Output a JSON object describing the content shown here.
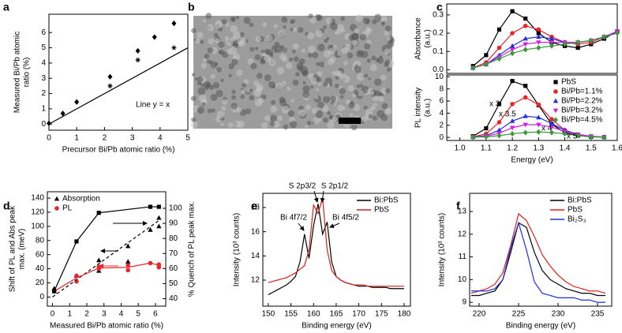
{
  "chart_data": [
    {
      "label": "a",
      "type": "scatter",
      "xlabel": "Precursor Bi/Pb atomic ratio (%)",
      "ylabel": [
        "Measured Bi/Pb atomic",
        "ratio (%)"
      ],
      "xlim": [
        0,
        5
      ],
      "ylim": [
        -0.4,
        7.2
      ],
      "xticks": [
        0,
        1,
        2,
        3,
        4,
        5
      ],
      "yticks": [
        0,
        1,
        2,
        3,
        4,
        5,
        6
      ],
      "series": [
        {
          "marker": "diamond",
          "color": "#000000",
          "line": false,
          "x": [
            0,
            0.5,
            1,
            2.2,
            3.2,
            3.8,
            4.5
          ],
          "values": [
            0.05,
            0.7,
            1.45,
            3.1,
            4.8,
            5.7,
            6.6
          ]
        },
        {
          "marker": "star",
          "color": "#000000",
          "line": false,
          "x": [
            2.2,
            3.2,
            4.5
          ],
          "values": [
            2.5,
            4.2,
            5.0
          ]
        },
        {
          "marker": "none",
          "color": "#000000",
          "line": true,
          "x": [
            0,
            5
          ],
          "values": [
            0,
            5
          ]
        }
      ],
      "annotations": [
        {
          "text": "Line y = x"
        }
      ]
    },
    {
      "label": "b",
      "type": "image"
    },
    {
      "label": "c",
      "type": "line",
      "ylabel": [
        "Absorbance",
        "(a.u.)"
      ],
      "xlim": [
        0.95,
        1.6
      ],
      "ylim": [
        -0.02,
        0.36
      ],
      "yticks": [
        {
          "value": 0,
          "label": "0.0"
        },
        0.1,
        0.2,
        0.3
      ],
      "series": [
        {
          "marker": "square",
          "color": "#000000",
          "line": true,
          "x": [
            1.05,
            1.1,
            1.15,
            1.2,
            1.25,
            1.3,
            1.35,
            1.4,
            1.45,
            1.5,
            1.55,
            1.6
          ],
          "values": [
            0.02,
            0.08,
            0.22,
            0.32,
            0.28,
            0.2,
            0.15,
            0.13,
            0.12,
            0.14,
            0.17,
            0.21
          ]
        },
        {
          "marker": "circle",
          "color": "#e8262a",
          "line": true,
          "x": [
            1.05,
            1.1,
            1.15,
            1.2,
            1.25,
            1.3,
            1.35,
            1.4,
            1.45,
            1.5,
            1.55,
            1.6
          ],
          "values": [
            0.01,
            0.04,
            0.12,
            0.2,
            0.24,
            0.22,
            0.18,
            0.15,
            0.14,
            0.15,
            0.18,
            0.21
          ]
        },
        {
          "marker": "triangle",
          "color": "#2030e0",
          "line": true,
          "x": [
            1.05,
            1.1,
            1.15,
            1.2,
            1.25,
            1.3,
            1.35,
            1.4,
            1.45,
            1.5,
            1.55,
            1.6
          ],
          "values": [
            0.01,
            0.03,
            0.08,
            0.13,
            0.17,
            0.18,
            0.17,
            0.15,
            0.15,
            0.16,
            0.18,
            0.21
          ]
        },
        {
          "marker": "triangle-down",
          "color": "#d020e0",
          "line": true,
          "x": [
            1.05,
            1.1,
            1.15,
            1.2,
            1.25,
            1.3,
            1.35,
            1.4,
            1.45,
            1.5,
            1.55,
            1.6
          ],
          "values": [
            0.01,
            0.03,
            0.07,
            0.11,
            0.14,
            0.15,
            0.15,
            0.15,
            0.15,
            0.16,
            0.18,
            0.21
          ]
        },
        {
          "marker": "diamond",
          "color": "#3a9a3a",
          "line": true,
          "x": [
            1.05,
            1.1,
            1.15,
            1.2,
            1.25,
            1.3,
            1.35,
            1.4,
            1.45,
            1.5,
            1.55,
            1.6
          ],
          "values": [
            0.01,
            0.03,
            0.06,
            0.09,
            0.11,
            0.12,
            0.13,
            0.14,
            0.15,
            0.16,
            0.18,
            0.2
          ]
        }
      ]
    },
    {
      "type": "line",
      "xlabel": "Energy (eV)",
      "ylabel": [
        "PL intensity",
        "(a.u.)"
      ],
      "xlim": [
        0.95,
        1.6
      ],
      "ylim": [
        -0.5,
        10.3
      ],
      "xticks": [
        {
          "value": 1,
          "label": "1.0"
        },
        1.1,
        1.2,
        1.3,
        1.4,
        1.5,
        1.6
      ],
      "yticks": [
        0,
        2,
        4,
        6,
        8,
        10
      ],
      "legend": "upper right",
      "series": [
        {
          "name": "PbS",
          "marker": "square",
          "color": "#000000",
          "line": true,
          "x": [
            1.05,
            1.1,
            1.15,
            1.2,
            1.25,
            1.3,
            1.35,
            1.4,
            1.45,
            1.5,
            1.55
          ],
          "values": [
            0.2,
            1.5,
            5.5,
            9.3,
            8.5,
            5.3,
            2.2,
            0.8,
            0.3,
            0.1,
            0.05
          ]
        },
        {
          "name": "Bi/Pb=1.1%",
          "marker": "circle",
          "color": "#e8262a",
          "line": true,
          "x": [
            1.05,
            1.1,
            1.15,
            1.2,
            1.25,
            1.3,
            1.35,
            1.4,
            1.45,
            1.5,
            1.55
          ],
          "values": [
            0.1,
            0.6,
            2.5,
            5.5,
            6.6,
            5.4,
            3,
            1.2,
            0.4,
            0.15,
            0.05
          ]
        },
        {
          "name": "Bi/Pb=2.2%",
          "marker": "triangle",
          "color": "#2030e0",
          "line": true,
          "x": [
            1.05,
            1.1,
            1.15,
            1.2,
            1.25,
            1.3,
            1.35,
            1.4,
            1.45,
            1.5,
            1.55
          ],
          "values": [
            0.05,
            0.3,
            1.2,
            2.7,
            3.5,
            3.3,
            2.3,
            1.2,
            0.5,
            0.2,
            0.05
          ]
        },
        {
          "name": "Bi/Pb=3.2%",
          "marker": "triangle-down",
          "color": "#d020e0",
          "line": true,
          "x": [
            1.05,
            1.1,
            1.15,
            1.2,
            1.25,
            1.3,
            1.35,
            1.4,
            1.45,
            1.5,
            1.55
          ],
          "values": [
            0.05,
            0.2,
            0.7,
            1.6,
            2.1,
            2.1,
            1.7,
            1,
            0.5,
            0.2,
            0.05
          ]
        },
        {
          "name": "Bi/Pb=4.5%",
          "marker": "diamond",
          "color": "#3a9a3a",
          "line": true,
          "x": [
            1.05,
            1.1,
            1.15,
            1.2,
            1.25,
            1.3,
            1.35,
            1.4,
            1.45,
            1.5,
            1.55
          ],
          "values": [
            0.02,
            0.1,
            0.3,
            0.6,
            0.8,
            0.9,
            0.8,
            0.6,
            0.3,
            0.1,
            0.05
          ]
        }
      ],
      "annotations": [
        {
          "text": "x 3",
          "color": "#e8262a"
        },
        {
          "text": "x 3.5",
          "color": "#2030e0"
        },
        {
          "text": "x 4",
          "color": "#d020e0"
        },
        {
          "text": "x 5",
          "color": "#3a9a3a"
        }
      ]
    },
    {
      "label": "d",
      "type": "scatter",
      "xlabel": "Measured Bi/Pb atomic ratio (%)",
      "ylabel": [
        "Shift of PL and Abs peak",
        "max. (meV)"
      ],
      "y2label": "% Quench of PL peak max.",
      "xlim": [
        -0.3,
        6.6
      ],
      "ylim": [
        -13,
        149
      ],
      "y2lim": [
        35,
        111
      ],
      "xticks": [
        0,
        1,
        2,
        3,
        4,
        5,
        6
      ],
      "yticks": [
        0,
        20,
        40,
        60,
        80,
        100,
        120,
        140
      ],
      "y2ticks": [
        40,
        50,
        60,
        70,
        80,
        90,
        100
      ],
      "legend": "upper left",
      "series": [
        {
          "name": "Absorption",
          "marker": "triangle",
          "color": "#000000",
          "line": false,
          "x": [
            0.1,
            0.1,
            1.4,
            2.7,
            2.7,
            4.4,
            4.4,
            5.7,
            6.2,
            6.2
          ],
          "values": [
            12,
            8,
            30,
            52,
            37,
            72,
            50,
            95,
            112,
            100
          ]
        },
        {
          "name": "PL",
          "marker": "circle",
          "color": "#e8262a",
          "line": false,
          "x": [
            0.1,
            1.4,
            1.4,
            2.7,
            2.7,
            4.4,
            4.4,
            5.7,
            6.2,
            6.2
          ],
          "values": [
            8,
            30,
            22,
            43,
            40,
            45,
            38,
            48,
            46,
            42
          ]
        },
        {
          "marker": "none",
          "color": "#000000",
          "line": true,
          "dash": true,
          "x": [
            0,
            6.3
          ],
          "values": [
            0,
            110
          ]
        },
        {
          "marker": "none",
          "color": "#e8262a",
          "line": true,
          "x": [
            0.1,
            1.4,
            2.7,
            4.4,
            5.7,
            6.2
          ],
          "values": [
            8,
            27,
            41,
            42,
            48,
            45
          ]
        },
        {
          "marker": "square",
          "color": "#000000",
          "line": true,
          "axis": "y2",
          "x": [
            0.1,
            1.4,
            2.7,
            5.7,
            6.2
          ],
          "values": [
            45,
            78,
            97,
            101,
            101
          ]
        }
      ]
    },
    {
      "label": "e",
      "type": "line",
      "xlabel": "Binding energy (eV)",
      "ylabel": "Intensity (10³ counts)",
      "xlim": [
        148.8,
        181.4
      ],
      "ylim": [
        9.85,
        19.17
      ],
      "xticks": [
        150,
        155,
        160,
        165,
        170,
        175,
        180
      ],
      "yticks": [
        12,
        14,
        16,
        18
      ],
      "legend": "upper right",
      "series": [
        {
          "name": "Bi:PbS",
          "marker": "none",
          "color": "#000000",
          "line": true,
          "x": [
            150,
            151,
            152,
            153,
            154,
            155,
            156,
            157,
            158,
            159,
            160,
            161,
            162,
            163,
            164,
            165,
            166,
            167,
            168,
            169,
            170,
            171,
            172,
            173,
            174,
            175,
            176,
            177,
            178,
            179,
            180
          ],
          "values": [
            10.8,
            11.0,
            11.2,
            11.4,
            11.6,
            11.9,
            12.3,
            13.5,
            15.8,
            13.8,
            16.5,
            18.3,
            15.8,
            16.8,
            13.5,
            12.3,
            12.0,
            11.8,
            11.7,
            11.6,
            11.5,
            11.5,
            11.5,
            11.4,
            11.4,
            11.4,
            11.4,
            11.3,
            11.3,
            11.3,
            11.3
          ]
        },
        {
          "name": "PbS",
          "marker": "none",
          "color": "#d42020",
          "line": true,
          "x": [
            150,
            151,
            152,
            153,
            154,
            155,
            156,
            157,
            158,
            159,
            160,
            161,
            162,
            163,
            164,
            165,
            166,
            167,
            168,
            169,
            170,
            171,
            172,
            173,
            174,
            175,
            176,
            177,
            178,
            179,
            180
          ],
          "values": [
            11.8,
            11.9,
            12.0,
            12.1,
            12.2,
            12.4,
            12.6,
            12.9,
            13.2,
            14.5,
            18.2,
            17.5,
            18.8,
            14.5,
            12.8,
            12.3,
            12.0,
            11.8,
            11.7,
            11.6,
            11.6,
            11.6,
            11.5,
            11.5,
            11.5,
            11.5,
            11.5,
            11.5,
            11.5,
            11.5,
            11.5
          ]
        }
      ],
      "annotations": [
        {
          "text": "S 2p3/2"
        },
        {
          "text": "S 2p1/2"
        },
        {
          "text": "Bi 4f7/2"
        },
        {
          "text": "Bi 4f5/2"
        }
      ]
    },
    {
      "label": "f",
      "type": "line",
      "xlabel": "Binding energy (eV)",
      "ylabel": "Intensity (10³ counts)",
      "xlim": [
        218.8,
        236.8
      ],
      "ylim": [
        8.83,
        13.8
      ],
      "xticks": [
        220,
        225,
        230,
        235
      ],
      "yticks": [
        9,
        10,
        11,
        12,
        13
      ],
      "legend": "upper right",
      "series": [
        {
          "name": "Bi:PbS",
          "marker": "none",
          "color": "#000000",
          "line": true,
          "x": [
            219,
            220,
            221,
            222,
            223,
            224,
            225,
            226,
            227,
            228,
            229,
            230,
            231,
            232,
            233,
            234,
            235,
            236
          ],
          "values": [
            9.3,
            9.3,
            9.4,
            9.5,
            10.0,
            11.2,
            12.5,
            12.3,
            11.2,
            10.4,
            10.0,
            9.8,
            9.6,
            9.5,
            9.4,
            9.4,
            9.3,
            9.3
          ]
        },
        {
          "name": "PbS",
          "marker": "none",
          "color": "#e02020",
          "line": true,
          "x": [
            219,
            220,
            221,
            222,
            223,
            224,
            225,
            226,
            227,
            228,
            229,
            230,
            231,
            232,
            233,
            234,
            235,
            236
          ],
          "values": [
            9.4,
            9.5,
            9.6,
            9.8,
            10.3,
            11.5,
            12.9,
            12.6,
            11.9,
            11.1,
            10.6,
            10.2,
            9.9,
            9.7,
            9.6,
            9.5,
            9.5,
            9.4
          ]
        },
        {
          "name": "Bi₂S₃",
          "marker": "none",
          "color": "#2030e0",
          "line": true,
          "x": [
            219,
            220,
            221,
            222,
            223,
            224,
            225,
            226,
            227,
            228,
            229,
            230,
            231,
            232,
            233,
            234,
            235,
            236
          ],
          "values": [
            9.5,
            9.5,
            9.5,
            9.6,
            10.0,
            11.4,
            12.5,
            11.3,
            9.9,
            9.4,
            9.3,
            9.2,
            9.2,
            9.2,
            9.1,
            9.1,
            9.0,
            9.0
          ]
        }
      ]
    }
  ]
}
